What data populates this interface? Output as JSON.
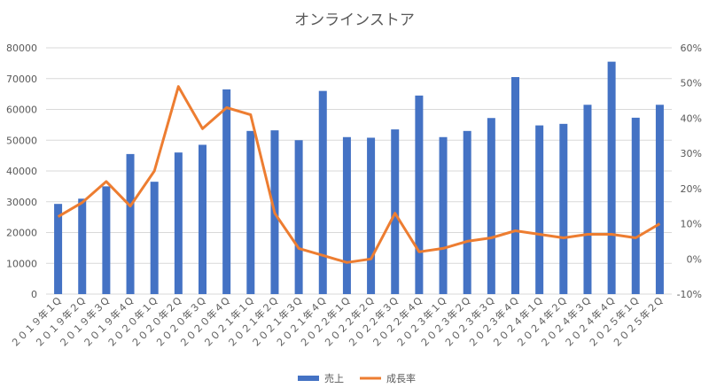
{
  "chart_data": {
    "type": "bar",
    "title": "オンラインストア",
    "categories": [
      "２０１９年１Q",
      "２０１９年２Q",
      "２０１９年３Q",
      "２０１９年４Q",
      "２０２０年１Q",
      "２０２０年２Q",
      "２０２０年３Q",
      "２０２０年４Q",
      "２０２１年１Q",
      "２０２１年２Q",
      "２０２１年３Q",
      "２０２１年４Q",
      "２０２２年１Q",
      "２０２２年２Q",
      "２０２２年３Q",
      "２０２２年４Q",
      "２０２３年１Q",
      "２０２３年２Q",
      "２０２３年３Q",
      "２０２３年４Q",
      "２０２４年１Q",
      "２０２４年２Q",
      "２０２４年３Q",
      "２０２４年４Q",
      "２０２５年１Q",
      "２０２５年２Q"
    ],
    "series": [
      {
        "name": "売上",
        "type": "bar",
        "axis": "left",
        "color": "#4472c4",
        "values": [
          29300,
          31000,
          35000,
          45500,
          36500,
          46000,
          48500,
          66500,
          53000,
          53200,
          50000,
          66000,
          51000,
          50800,
          53500,
          64500,
          51000,
          53000,
          57200,
          70500,
          54800,
          55300,
          61500,
          75500,
          57300,
          61500
        ]
      },
      {
        "name": "成長率",
        "type": "line",
        "axis": "right",
        "color": "#ed7d31",
        "values": [
          0.12,
          0.16,
          0.22,
          0.15,
          0.25,
          0.49,
          0.37,
          0.43,
          0.41,
          0.13,
          0.03,
          0.01,
          -0.01,
          0.0,
          0.13,
          0.02,
          0.03,
          0.05,
          0.06,
          0.08,
          0.07,
          0.06,
          0.07,
          0.07,
          0.06,
          0.1
        ]
      }
    ],
    "y_left": {
      "min": 0,
      "max": 80000,
      "step": 10000,
      "ticks": [
        "0",
        "10000",
        "20000",
        "30000",
        "40000",
        "50000",
        "60000",
        "70000",
        "80000"
      ]
    },
    "y_right": {
      "min": -0.1,
      "max": 0.6,
      "step": 0.1,
      "ticks": [
        "-10%",
        "0%",
        "10%",
        "20%",
        "30%",
        "40%",
        "50%",
        "60%"
      ]
    },
    "grid": true,
    "legend": "bottom"
  }
}
